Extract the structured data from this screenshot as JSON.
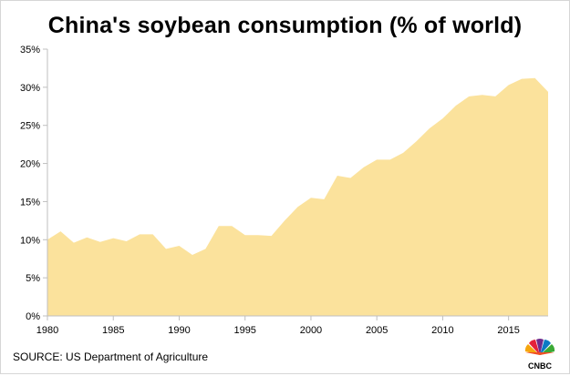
{
  "chart_data": {
    "type": "area",
    "title": "China's soybean consumption (% of world)",
    "xlabel": "",
    "ylabel": "",
    "x": [
      1980,
      1981,
      1982,
      1983,
      1984,
      1985,
      1986,
      1987,
      1988,
      1989,
      1990,
      1991,
      1992,
      1993,
      1994,
      1995,
      1996,
      1997,
      1998,
      1999,
      2000,
      2001,
      2002,
      2003,
      2004,
      2005,
      2006,
      2007,
      2008,
      2009,
      2010,
      2011,
      2012,
      2013,
      2014,
      2015,
      2016,
      2017,
      2018
    ],
    "series": [
      {
        "values": [
          10.0,
          11.1,
          9.6,
          10.3,
          9.7,
          10.2,
          9.8,
          10.7,
          10.7,
          8.8,
          9.2,
          8.0,
          8.8,
          11.8,
          11.8,
          10.6,
          10.6,
          10.5,
          12.5,
          14.3,
          15.5,
          15.3,
          18.4,
          18.1,
          19.5,
          20.5,
          20.5,
          21.4,
          22.9,
          24.6,
          25.9,
          27.6,
          28.8,
          29.0,
          28.8,
          30.3,
          31.1,
          31.2,
          29.4
        ],
        "color": "#fbe29c"
      }
    ],
    "xlim": [
      1980,
      2018
    ],
    "ylim": [
      0,
      35
    ],
    "x_ticks": [
      1980,
      1985,
      1990,
      1995,
      2000,
      2005,
      2010,
      2015
    ],
    "x_tick_labels": [
      "1980",
      "1985",
      "1990",
      "1995",
      "2000",
      "2005",
      "2010",
      "2015"
    ],
    "y_ticks": [
      0,
      5,
      10,
      15,
      20,
      25,
      30,
      35
    ],
    "y_tick_labels": [
      "0%",
      "5%",
      "10%",
      "15%",
      "20%",
      "25%",
      "30%",
      "35%"
    ],
    "grid": false,
    "legend": "none"
  },
  "source_text": "SOURCE: US Department of Agriculture",
  "logo_text": "CNBC",
  "colors": {
    "area_fill": "#fbe29c",
    "axis": "#bfbfbf",
    "logo_text": "#000000"
  },
  "icons": {
    "logo": "nbc-peacock-icon"
  }
}
